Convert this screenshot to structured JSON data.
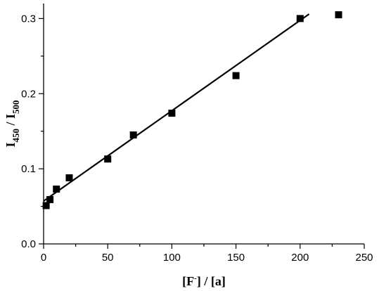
{
  "chart_data": {
    "type": "scatter",
    "title": "",
    "xlabel": {
      "main": "[F",
      "sup": "-",
      "tail": "] / [a]"
    },
    "ylabel": {
      "part1": "I",
      "sub1": "450",
      "mid": " / I",
      "sub2": "500"
    },
    "xlim": [
      0,
      250
    ],
    "ylim": [
      0.0,
      0.32
    ],
    "x_ticks": [
      0,
      50,
      100,
      150,
      200,
      250
    ],
    "x_tick_labels": [
      "0",
      "50",
      "100",
      "150",
      "200",
      "250"
    ],
    "y_ticks": [
      0.0,
      0.1,
      0.2,
      0.3
    ],
    "y_tick_labels": [
      "0.0",
      "0.1",
      "0.2",
      "0.3"
    ],
    "x_minor_step": 25,
    "y_minor_step": 0.05,
    "grid": false,
    "marker": "square",
    "series": [
      {
        "points": [
          {
            "x": 2,
            "y": 0.051
          },
          {
            "x": 5,
            "y": 0.059
          },
          {
            "x": 10,
            "y": 0.073
          },
          {
            "x": 20,
            "y": 0.088
          },
          {
            "x": 50,
            "y": 0.113
          },
          {
            "x": 70,
            "y": 0.145
          },
          {
            "x": 100,
            "y": 0.174
          },
          {
            "x": 150,
            "y": 0.224
          },
          {
            "x": 200,
            "y": 0.3
          },
          {
            "x": 230,
            "y": 0.305
          }
        ]
      }
    ],
    "fit_line": {
      "x1": 0,
      "y1": 0.057,
      "x2": 207,
      "y2": 0.306
    }
  }
}
